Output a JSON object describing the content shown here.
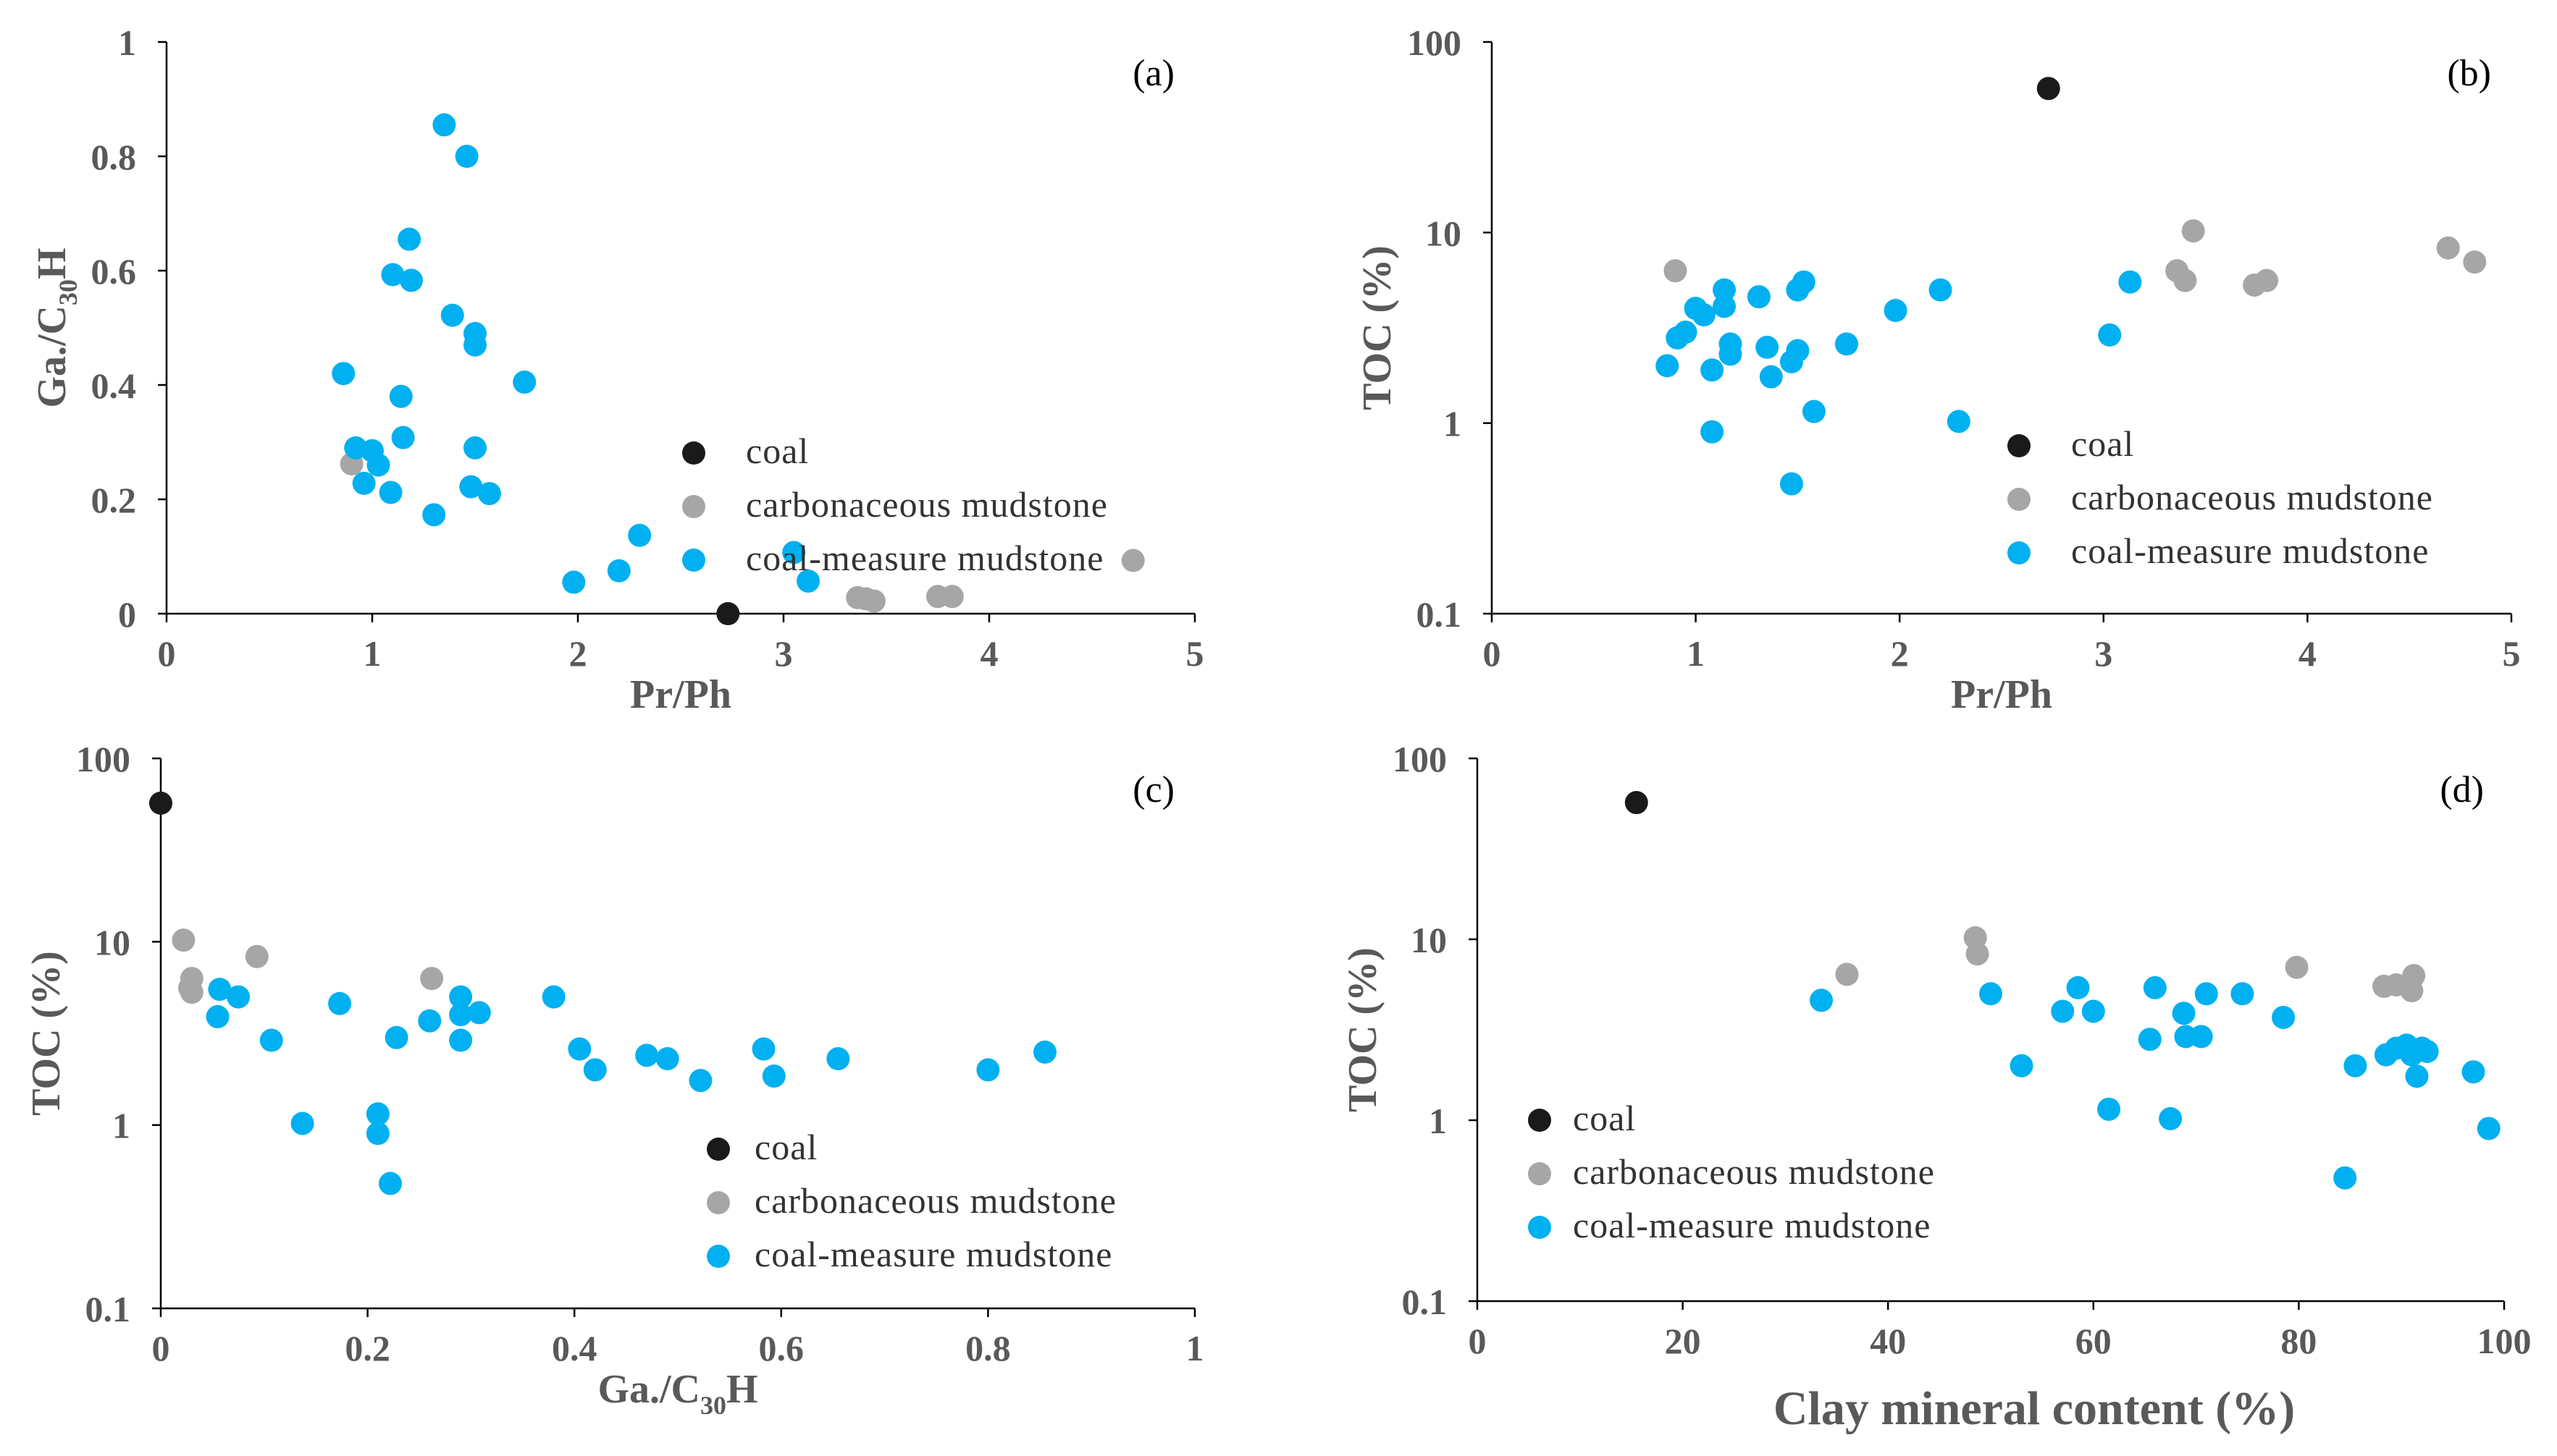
{
  "series_styles": {
    "coal": "#1a1a1a",
    "carbonaceous mudstone": "#a6a6a6",
    "coal-measure mudstone": "#00b0f0"
  },
  "chart_data": [
    {
      "type": "scatter",
      "panel": "(a)",
      "xlabel": "Pr/Ph",
      "ylabel_parts": [
        "Ga./C",
        "30",
        "H"
      ],
      "xlim": [
        0,
        5
      ],
      "ylim": [
        0,
        1
      ],
      "yscale": "linear",
      "xticks": [
        "0",
        "1",
        "2",
        "3",
        "4",
        "5"
      ],
      "yticks": [
        "0",
        "0.2",
        "0.4",
        "0.6",
        "0.8",
        "1"
      ],
      "legend": [
        "coal",
        "carbonaceous mudstone",
        "coal-measure mudstone"
      ],
      "series": [
        {
          "name": "coal",
          "points": [
            [
              2.73,
              0.0
            ]
          ]
        },
        {
          "name": "carbonaceous mudstone",
          "points": [
            [
              0.9,
              0.262
            ],
            [
              3.36,
              0.028
            ],
            [
              3.4,
              0.026
            ],
            [
              3.44,
              0.022
            ],
            [
              3.75,
              0.03
            ],
            [
              3.82,
              0.03
            ],
            [
              4.7,
              0.093
            ]
          ]
        },
        {
          "name": "coal-measure mudstone",
          "points": [
            [
              1.35,
              0.855
            ],
            [
              1.46,
              0.8
            ],
            [
              1.18,
              0.655
            ],
            [
              1.1,
              0.593
            ],
            [
              1.19,
              0.583
            ],
            [
              1.39,
              0.522
            ],
            [
              1.5,
              0.49
            ],
            [
              1.5,
              0.47
            ],
            [
              0.86,
              0.42
            ],
            [
              1.74,
              0.405
            ],
            [
              1.14,
              0.38
            ],
            [
              0.92,
              0.29
            ],
            [
              1.15,
              0.308
            ],
            [
              1.0,
              0.285
            ],
            [
              1.5,
              0.29
            ],
            [
              1.03,
              0.26
            ],
            [
              0.96,
              0.228
            ],
            [
              1.09,
              0.212
            ],
            [
              1.48,
              0.222
            ],
            [
              1.57,
              0.21
            ],
            [
              1.3,
              0.173
            ],
            [
              2.3,
              0.137
            ],
            [
              3.05,
              0.107
            ],
            [
              3.12,
              0.057
            ],
            [
              2.2,
              0.075
            ],
            [
              1.98,
              0.055
            ]
          ]
        }
      ]
    },
    {
      "type": "scatter",
      "panel": "(b)",
      "xlabel": "Pr/Ph",
      "ylabel": "TOC (%)",
      "xlim": [
        0,
        5
      ],
      "ylim": [
        0.1,
        100
      ],
      "yscale": "log",
      "xticks": [
        "0",
        "1",
        "2",
        "3",
        "4",
        "5"
      ],
      "yticks": [
        "0.1",
        "1",
        "10",
        "100"
      ],
      "legend": [
        "coal",
        "carbonaceous mudstone",
        "coal-measure mudstone"
      ],
      "series": [
        {
          "name": "coal",
          "points": [
            [
              2.73,
              57
            ]
          ]
        },
        {
          "name": "carbonaceous mudstone",
          "points": [
            [
              0.9,
              6.3
            ],
            [
              3.44,
              10.2
            ],
            [
              3.36,
              6.3
            ],
            [
              3.4,
              5.6
            ],
            [
              3.74,
              5.3
            ],
            [
              3.8,
              5.6
            ],
            [
              4.69,
              8.3
            ],
            [
              4.82,
              7.0
            ]
          ]
        },
        {
          "name": "coal-measure mudstone",
          "points": [
            [
              1.0,
              4.0
            ],
            [
              1.04,
              3.7
            ],
            [
              1.14,
              5.0
            ],
            [
              1.14,
              4.1
            ],
            [
              1.31,
              4.6
            ],
            [
              1.5,
              5.0
            ],
            [
              1.53,
              5.5
            ],
            [
              1.98,
              3.9
            ],
            [
              2.2,
              5.0
            ],
            [
              3.13,
              5.5
            ],
            [
              0.91,
              2.8
            ],
            [
              0.95,
              3.0
            ],
            [
              1.17,
              2.6
            ],
            [
              1.17,
              2.3
            ],
            [
              1.35,
              2.5
            ],
            [
              1.5,
              2.4
            ],
            [
              1.47,
              2.1
            ],
            [
              1.74,
              2.6
            ],
            [
              3.03,
              2.9
            ],
            [
              0.86,
              2.0
            ],
            [
              1.08,
              1.9
            ],
            [
              1.37,
              1.75
            ],
            [
              1.58,
              1.15
            ],
            [
              1.08,
              0.9
            ],
            [
              2.29,
              1.02
            ],
            [
              1.47,
              0.48
            ]
          ]
        }
      ]
    },
    {
      "type": "scatter",
      "panel": "(c)",
      "xlabel_parts": [
        "Ga./C",
        "30",
        "H"
      ],
      "ylabel": "TOC (%)",
      "xlim": [
        0,
        1
      ],
      "ylim": [
        0.1,
        100
      ],
      "yscale": "log",
      "xticks": [
        "0",
        "0.2",
        "0.4",
        "0.6",
        "0.8",
        "1"
      ],
      "yticks": [
        "0.1",
        "1",
        "10",
        "100"
      ],
      "legend": [
        "coal",
        "carbonaceous mudstone",
        "coal-measure mudstone"
      ],
      "series": [
        {
          "name": "coal",
          "points": [
            [
              0.0,
              57
            ]
          ]
        },
        {
          "name": "carbonaceous mudstone",
          "points": [
            [
              0.022,
              10.2
            ],
            [
              0.03,
              6.3
            ],
            [
              0.028,
              5.6
            ],
            [
              0.03,
              5.3
            ],
            [
              0.093,
              8.3
            ],
            [
              0.262,
              6.3
            ]
          ]
        },
        {
          "name": "coal-measure mudstone",
          "points": [
            [
              0.057,
              5.5
            ],
            [
              0.055,
              3.9
            ],
            [
              0.075,
              5.0
            ],
            [
              0.107,
              2.9
            ],
            [
              0.137,
              1.02
            ],
            [
              0.173,
              4.6
            ],
            [
              0.21,
              1.15
            ],
            [
              0.21,
              0.9
            ],
            [
              0.222,
              0.48
            ],
            [
              0.228,
              3.0
            ],
            [
              0.26,
              3.7
            ],
            [
              0.29,
              4.0
            ],
            [
              0.29,
              5.0
            ],
            [
              0.29,
              2.9
            ],
            [
              0.308,
              4.1
            ],
            [
              0.38,
              5.0
            ],
            [
              0.405,
              2.6
            ],
            [
              0.42,
              2.0
            ],
            [
              0.47,
              2.4
            ],
            [
              0.49,
              2.3
            ],
            [
              0.522,
              1.75
            ],
            [
              0.583,
              2.6
            ],
            [
              0.593,
              1.85
            ],
            [
              0.655,
              2.3
            ],
            [
              0.8,
              2.0
            ],
            [
              0.855,
              2.5
            ]
          ]
        }
      ]
    },
    {
      "type": "scatter",
      "panel": "(d)",
      "xlabel": "Clay mineral content (%)",
      "ylabel": "TOC (%)",
      "xlim": [
        0,
        100
      ],
      "ylim": [
        0.1,
        100
      ],
      "yscale": "log",
      "xticks": [
        "0",
        "20",
        "40",
        "60",
        "80",
        "100"
      ],
      "yticks": [
        "0.1",
        "1",
        "10",
        "100"
      ],
      "legend": [
        "coal",
        "carbonaceous mudstone",
        "coal-measure mudstone"
      ],
      "series": [
        {
          "name": "coal",
          "points": [
            [
              15.5,
              57
            ]
          ]
        },
        {
          "name": "carbonaceous mudstone",
          "points": [
            [
              36,
              6.4
            ],
            [
              48.5,
              10.2
            ],
            [
              48.7,
              8.3
            ],
            [
              79.8,
              7.0
            ],
            [
              88.3,
              5.5
            ],
            [
              89.5,
              5.6
            ],
            [
              91,
              5.2
            ],
            [
              91.2,
              6.3
            ]
          ]
        },
        {
          "name": "coal-measure mudstone",
          "points": [
            [
              33.5,
              4.6
            ],
            [
              50,
              5.0
            ],
            [
              53,
              2.0
            ],
            [
              57,
              4.0
            ],
            [
              58.5,
              5.4
            ],
            [
              60,
              4.0
            ],
            [
              61.5,
              1.15
            ],
            [
              65.5,
              2.8
            ],
            [
              66,
              5.4
            ],
            [
              67.5,
              1.02
            ],
            [
              68.8,
              3.9
            ],
            [
              69,
              2.9
            ],
            [
              70.5,
              2.9
            ],
            [
              71,
              5.0
            ],
            [
              74.5,
              5.0
            ],
            [
              78.5,
              3.7
            ],
            [
              84.5,
              0.48
            ],
            [
              85.5,
              2.0
            ],
            [
              88.5,
              2.3
            ],
            [
              89.5,
              2.5
            ],
            [
              90.5,
              2.6
            ],
            [
              91,
              2.3
            ],
            [
              91.5,
              1.75
            ],
            [
              92,
              2.5
            ],
            [
              92.5,
              2.4
            ],
            [
              97,
              1.85
            ],
            [
              98.5,
              0.9
            ]
          ]
        }
      ]
    }
  ]
}
